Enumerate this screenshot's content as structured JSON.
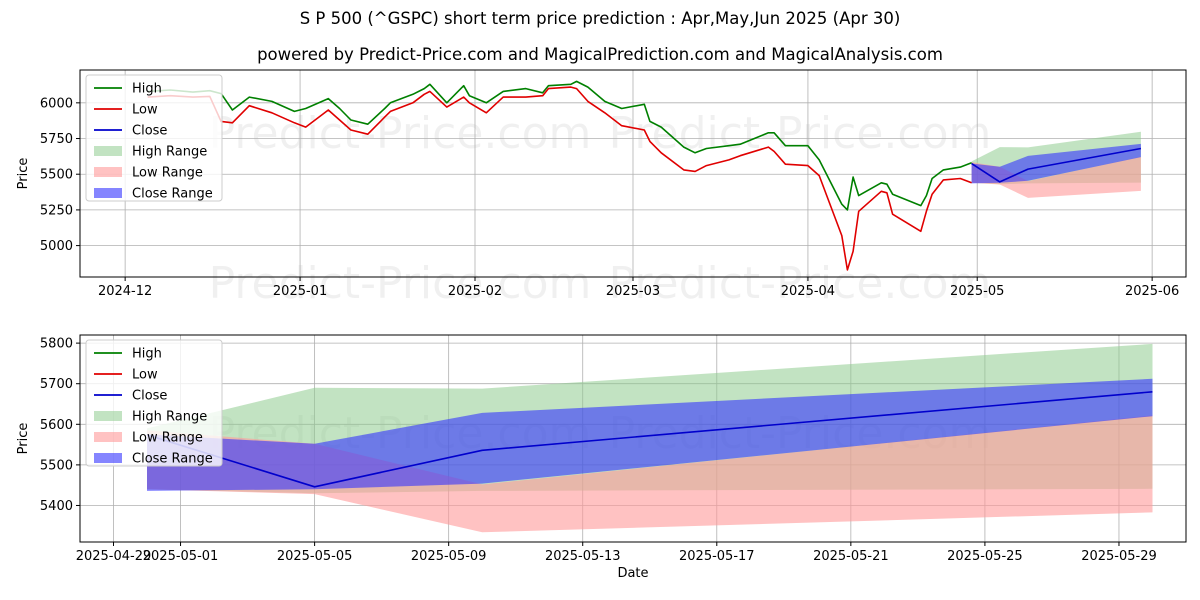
{
  "title": "S P 500 (^GSPC) short term price prediction : Apr,May,Jun 2025 (Apr 30)",
  "subtitle": "powered by Predict-Price.com and MagicalPrediction.com and MagicalAnalysis.com",
  "watermark": "Predict-Price.com",
  "colors": {
    "high": "#008000",
    "low": "#e00000",
    "close": "#0000cc",
    "high_range": "#8fcc8f",
    "low_range": "#ff9a9a",
    "close_range": "#3333ff"
  },
  "chart_data": [
    {
      "type": "line",
      "xlabel": "Date",
      "ylabel": "Price",
      "xlim": [
        "2024-11-23",
        "2025-06-07"
      ],
      "ylim": [
        4780,
        6230
      ],
      "grid": true,
      "legend_position": "top-left",
      "x_ticks": [
        {
          "date": "2024-12-01",
          "label": "2024-12"
        },
        {
          "date": "2025-01-01",
          "label": "2025-01"
        },
        {
          "date": "2025-02-01",
          "label": "2025-02"
        },
        {
          "date": "2025-03-01",
          "label": "2025-03"
        },
        {
          "date": "2025-04-01",
          "label": "2025-04"
        },
        {
          "date": "2025-05-01",
          "label": "2025-05"
        },
        {
          "date": "2025-06-01",
          "label": "2025-06"
        }
      ],
      "y_ticks": [
        5000,
        5250,
        5500,
        5750,
        6000
      ],
      "legend": [
        "High",
        "Low",
        "Close",
        "High Range",
        "Low Range",
        "Close Range"
      ],
      "series": [
        {
          "name": "High",
          "x": [
            "2024-12-05",
            "2024-12-09",
            "2024-12-13",
            "2024-12-16",
            "2024-12-18",
            "2024-12-20",
            "2024-12-23",
            "2024-12-27",
            "2024-12-31",
            "2025-01-02",
            "2025-01-06",
            "2025-01-08",
            "2025-01-10",
            "2025-01-13",
            "2025-01-16",
            "2025-01-17",
            "2025-01-21",
            "2025-01-23",
            "2025-01-24",
            "2025-01-27",
            "2025-01-30",
            "2025-01-31",
            "2025-02-03",
            "2025-02-06",
            "2025-02-10",
            "2025-02-13",
            "2025-02-14",
            "2025-02-18",
            "2025-02-19",
            "2025-02-21",
            "2025-02-24",
            "2025-02-27",
            "2025-03-03",
            "2025-03-04",
            "2025-03-06",
            "2025-03-10",
            "2025-03-12",
            "2025-03-14",
            "2025-03-18",
            "2025-03-20",
            "2025-03-25",
            "2025-03-26",
            "2025-03-28",
            "2025-04-01",
            "2025-04-03",
            "2025-04-07",
            "2025-04-08",
            "2025-04-09",
            "2025-04-10",
            "2025-04-14",
            "2025-04-15",
            "2025-04-16",
            "2025-04-21",
            "2025-04-22",
            "2025-04-23",
            "2025-04-25",
            "2025-04-28",
            "2025-04-30"
          ],
          "values": [
            6080,
            6090,
            6075,
            6085,
            6065,
            5950,
            6040,
            6010,
            5940,
            5960,
            6030,
            5960,
            5880,
            5850,
            5960,
            6000,
            6060,
            6100,
            6130,
            6000,
            6120,
            6050,
            6000,
            6080,
            6100,
            6070,
            6120,
            6130,
            6150,
            6110,
            6010,
            5960,
            5990,
            5870,
            5830,
            5690,
            5650,
            5680,
            5700,
            5710,
            5790,
            5790,
            5700,
            5700,
            5600,
            5290,
            5250,
            5480,
            5350,
            5440,
            5430,
            5360,
            5280,
            5350,
            5470,
            5530,
            5550,
            5580
          ]
        },
        {
          "name": "Low",
          "x": [
            "2024-12-05",
            "2024-12-09",
            "2024-12-13",
            "2024-12-16",
            "2024-12-18",
            "2024-12-20",
            "2024-12-23",
            "2024-12-27",
            "2024-12-31",
            "2025-01-02",
            "2025-01-06",
            "2025-01-08",
            "2025-01-10",
            "2025-01-13",
            "2025-01-16",
            "2025-01-17",
            "2025-01-21",
            "2025-01-23",
            "2025-01-24",
            "2025-01-27",
            "2025-01-30",
            "2025-01-31",
            "2025-02-03",
            "2025-02-06",
            "2025-02-10",
            "2025-02-13",
            "2025-02-14",
            "2025-02-18",
            "2025-02-19",
            "2025-02-21",
            "2025-02-24",
            "2025-02-27",
            "2025-03-03",
            "2025-03-04",
            "2025-03-06",
            "2025-03-10",
            "2025-03-12",
            "2025-03-14",
            "2025-03-18",
            "2025-03-20",
            "2025-03-25",
            "2025-03-26",
            "2025-03-28",
            "2025-04-01",
            "2025-04-03",
            "2025-04-07",
            "2025-04-08",
            "2025-04-09",
            "2025-04-10",
            "2025-04-14",
            "2025-04-15",
            "2025-04-16",
            "2025-04-21",
            "2025-04-22",
            "2025-04-23",
            "2025-04-25",
            "2025-04-28",
            "2025-04-30"
          ],
          "values": [
            6040,
            6050,
            6040,
            6045,
            5870,
            5860,
            5980,
            5930,
            5860,
            5830,
            5950,
            5880,
            5810,
            5780,
            5900,
            5940,
            6000,
            6060,
            6080,
            5970,
            6040,
            6000,
            5930,
            6040,
            6040,
            6050,
            6100,
            6110,
            6100,
            6010,
            5930,
            5840,
            5810,
            5730,
            5650,
            5530,
            5520,
            5560,
            5600,
            5630,
            5690,
            5660,
            5570,
            5560,
            5490,
            5070,
            4830,
            4960,
            5240,
            5380,
            5370,
            5220,
            5100,
            5240,
            5360,
            5460,
            5470,
            5440
          ]
        },
        {
          "name": "High Range",
          "x": [
            "2025-04-30",
            "2025-05-05",
            "2025-05-10",
            "2025-05-30"
          ],
          "upper": [
            5590,
            5690,
            5688,
            5798
          ],
          "lower": [
            5440,
            5430,
            5436,
            5441
          ]
        },
        {
          "name": "Low Range",
          "x": [
            "2025-04-30",
            "2025-05-05",
            "2025-05-10",
            "2025-05-30"
          ],
          "upper": [
            5585,
            5552,
            5452,
            5622
          ],
          "lower": [
            5440,
            5428,
            5334,
            5383
          ]
        },
        {
          "name": "Close Range",
          "x": [
            "2025-04-30",
            "2025-05-05",
            "2025-05-10",
            "2025-05-30"
          ],
          "upper": [
            5575,
            5552,
            5628,
            5712
          ],
          "lower": [
            5436,
            5440,
            5454,
            5620
          ]
        },
        {
          "name": "Close",
          "x": [
            "2025-04-30",
            "2025-05-05",
            "2025-05-10",
            "2025-05-30"
          ],
          "values": [
            5574,
            5446,
            5536,
            5680
          ]
        }
      ]
    },
    {
      "type": "line",
      "xlabel": "Date",
      "ylabel": "Price",
      "xlim": [
        "2025-04-28",
        "2025-05-31"
      ],
      "ylim": [
        5310,
        5820
      ],
      "grid": true,
      "legend_position": "top-left",
      "x_ticks": [
        {
          "date": "2025-04-29",
          "label": "2025-04-29"
        },
        {
          "date": "2025-05-01",
          "label": "2025-05-01"
        },
        {
          "date": "2025-05-05",
          "label": "2025-05-05"
        },
        {
          "date": "2025-05-09",
          "label": "2025-05-09"
        },
        {
          "date": "2025-05-13",
          "label": "2025-05-13"
        },
        {
          "date": "2025-05-17",
          "label": "2025-05-17"
        },
        {
          "date": "2025-05-21",
          "label": "2025-05-21"
        },
        {
          "date": "2025-05-25",
          "label": "2025-05-25"
        },
        {
          "date": "2025-05-29",
          "label": "2025-05-29"
        }
      ],
      "y_ticks": [
        5400,
        5500,
        5600,
        5700,
        5800
      ],
      "legend": [
        "High",
        "Low",
        "Close",
        "High Range",
        "Low Range",
        "Close Range"
      ],
      "series": [
        {
          "name": "High Range",
          "x": [
            "2025-04-30",
            "2025-05-05",
            "2025-05-10",
            "2025-05-30"
          ],
          "upper": [
            5590,
            5690,
            5688,
            5798
          ],
          "lower": [
            5440,
            5430,
            5436,
            5441
          ]
        },
        {
          "name": "Low Range",
          "x": [
            "2025-04-30",
            "2025-05-05",
            "2025-05-10",
            "2025-05-30"
          ],
          "upper": [
            5585,
            5552,
            5452,
            5622
          ],
          "lower": [
            5440,
            5428,
            5334,
            5383
          ]
        },
        {
          "name": "Close Range",
          "x": [
            "2025-04-30",
            "2025-05-05",
            "2025-05-10",
            "2025-05-30"
          ],
          "upper": [
            5575,
            5552,
            5628,
            5712
          ],
          "lower": [
            5436,
            5440,
            5454,
            5620
          ]
        },
        {
          "name": "Close",
          "x": [
            "2025-04-30",
            "2025-05-05",
            "2025-05-10",
            "2025-05-30"
          ],
          "values": [
            5574,
            5446,
            5536,
            5680
          ]
        }
      ]
    }
  ]
}
